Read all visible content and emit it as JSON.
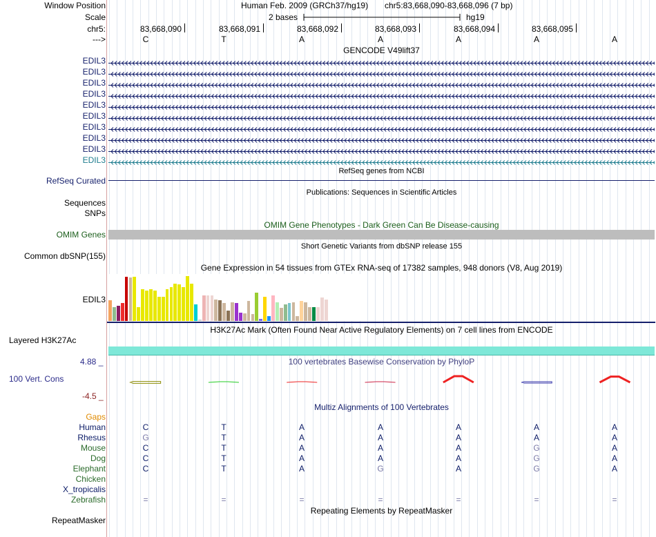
{
  "header": {
    "window_position_label": "Window Position",
    "assembly_title": "Human Feb. 2009 (GRCh37/hg19)",
    "position": "chr5:83,668,090-83,668,096 (7 bp)",
    "scale_label": "Scale",
    "scale_text": "2 bases",
    "scale_db": "hg19",
    "chrom_label": "chr5:",
    "ruler_positions": [
      "83,668,090",
      "83,668,091",
      "83,668,092",
      "83,668,093",
      "83,668,094",
      "83,668,095"
    ],
    "strand_label": "--->",
    "bases": [
      "C",
      "T",
      "A",
      "A",
      "A",
      "A",
      "A"
    ]
  },
  "gencode": {
    "title": "GENCODE V49lift37",
    "rows": [
      "EDIL3",
      "EDIL3",
      "EDIL3",
      "EDIL3",
      "EDIL3",
      "EDIL3",
      "EDIL3",
      "EDIL3",
      "EDIL3",
      "EDIL3"
    ],
    "colors": [
      "#141f6b",
      "#141f6b",
      "#141f6b",
      "#141f6b",
      "#141f6b",
      "#141f6b",
      "#141f6b",
      "#141f6b",
      "#141f6b",
      "#1f7d8f"
    ]
  },
  "refseq": {
    "title": "RefSeq genes from NCBI",
    "label": "RefSeq Curated"
  },
  "publications": {
    "title": "Publications: Sequences in Scientific Articles",
    "label_a": "Sequences",
    "label_b": "SNPs"
  },
  "omim": {
    "title": "OMIM Gene Phenotypes - Dark Green Can Be Disease-causing",
    "label": "OMIM Genes"
  },
  "dbsnp": {
    "title": "Short Genetic Variants from dbSNP release 155",
    "label": "Common dbSNP(155)"
  },
  "gtex": {
    "title": "Gene Expression in 54 tissues from GTEx RNA-seq of 17382 samples, 948 donors (V8, Aug 2019)",
    "label": "EDIL3",
    "levels": [
      0.44,
      0.3,
      0.32,
      0.38,
      0.94,
      0.92,
      0.94,
      0.3,
      0.68,
      0.64,
      0.68,
      0.64,
      0.52,
      0.52,
      0.68,
      0.72,
      0.8,
      0.78,
      0.72,
      0.96,
      0.8,
      0.36,
      0.03,
      0.54,
      0.54,
      0.54,
      0.46,
      0.44,
      0.38,
      0.22,
      0.4,
      0.38,
      0.18,
      0.16,
      0.42,
      0.14,
      0.6,
      0.04,
      0.52,
      0.1,
      0.54,
      0.4,
      0.28,
      0.36,
      0.38,
      0.4,
      0.1,
      0.42,
      0.4,
      0.3,
      0.3,
      0.3,
      0.5,
      0.46
    ],
    "colors": [
      "#f4a460",
      "#8fbc8f",
      "#8b1c62",
      "#ee2c2c",
      "#c70000",
      "#cdb79e",
      "#e8e800",
      "#e8e800",
      "#e8e800",
      "#e8e800",
      "#e8e800",
      "#e8e800",
      "#e8e800",
      "#e8e800",
      "#e8e800",
      "#e8e800",
      "#e8e800",
      "#e8e800",
      "#e8e800",
      "#e8e800",
      "#e8e800",
      "#00ced1",
      "#cccccc",
      "#eeb4b4",
      "#eed5d2",
      "#eed5d2",
      "#cdb79e",
      "#8b7355",
      "#cdb79e",
      "#8b7355",
      "#cdb79e",
      "#9a32cd",
      "#9a32cd",
      "#cdb79e",
      "#cdb79e",
      "#cdb79e",
      "#9acd32",
      "#7a67ee",
      "#ffd700",
      "#1e90ff",
      "#ffb6c1",
      "#b4eeb4",
      "#cdb79e",
      "#8fbc8f",
      "#7ac5cd",
      "#cdb79e",
      "#cdb79e",
      "#ffd39b",
      "#cdb79e",
      "#cdb79e",
      "#008b45",
      "#eed5d2",
      "#eed5d2",
      "#eed5d2"
    ]
  },
  "h3k27ac": {
    "title": "H3K27Ac Mark (Often Found Near Active Regulatory Elements) on 7 cell lines from ENCODE",
    "label": "Layered H3K27Ac"
  },
  "phylop": {
    "title": "100 vertebrates Basewise Conservation by PhyloP",
    "label": "100 Vert. Cons",
    "max_label": "4.88 _",
    "min_label": "-4.5 _",
    "values": [
      -0.9,
      0.2,
      0.3,
      0.1,
      2.8,
      -0.3,
      2.6
    ],
    "colors": [
      "#8b8b00",
      "#22cc22",
      "#ee2222",
      "#cc2244",
      "#ee2222",
      "#3333aa",
      "#ee2222"
    ]
  },
  "multiz": {
    "title": "Multiz Alignments of 100 Vertebrates",
    "gaps_label": "Gaps",
    "species": [
      {
        "name": "Human",
        "color": "#0a1a66",
        "bases": [
          "C",
          "T",
          "A",
          "A",
          "A",
          "A",
          "A"
        ],
        "match": [
          true,
          true,
          true,
          true,
          true,
          true,
          true
        ]
      },
      {
        "name": "Rhesus",
        "color": "#0a1a66",
        "bases": [
          "G",
          "T",
          "A",
          "A",
          "A",
          "A",
          "A"
        ],
        "match": [
          false,
          true,
          true,
          true,
          true,
          true,
          true
        ]
      },
      {
        "name": "Mouse",
        "color": "#2a6a2a",
        "bases": [
          "C",
          "T",
          "A",
          "A",
          "A",
          "G",
          "A"
        ],
        "match": [
          true,
          true,
          true,
          true,
          true,
          false,
          true
        ]
      },
      {
        "name": "Dog",
        "color": "#2a6a2a",
        "bases": [
          "C",
          "T",
          "A",
          "A",
          "A",
          "G",
          "A"
        ],
        "match": [
          true,
          true,
          true,
          true,
          true,
          false,
          true
        ]
      },
      {
        "name": "Elephant",
        "color": "#2a6a2a",
        "bases": [
          "C",
          "T",
          "A",
          "G",
          "A",
          "G",
          "A"
        ],
        "match": [
          true,
          true,
          true,
          false,
          true,
          false,
          true
        ]
      },
      {
        "name": "Chicken",
        "color": "#2a6a2a",
        "bases": [
          "",
          "",
          "",
          "",
          "",
          "",
          ""
        ],
        "match": [
          true,
          true,
          true,
          true,
          true,
          true,
          true
        ]
      },
      {
        "name": "X_tropicalis",
        "color": "#0a1a66",
        "bases": [
          "",
          "",
          "",
          "",
          "",
          "",
          ""
        ],
        "match": [
          true,
          true,
          true,
          true,
          true,
          true,
          true
        ]
      },
      {
        "name": "Zebrafish",
        "color": "#2a6a2a",
        "bases": [
          "=",
          "=",
          "=",
          "=",
          "=",
          "=",
          "="
        ],
        "match": [
          false,
          false,
          false,
          false,
          false,
          false,
          false
        ]
      }
    ]
  },
  "repeatmasker": {
    "title": "Repeating Elements by RepeatMasker",
    "label": "RepeatMasker"
  }
}
